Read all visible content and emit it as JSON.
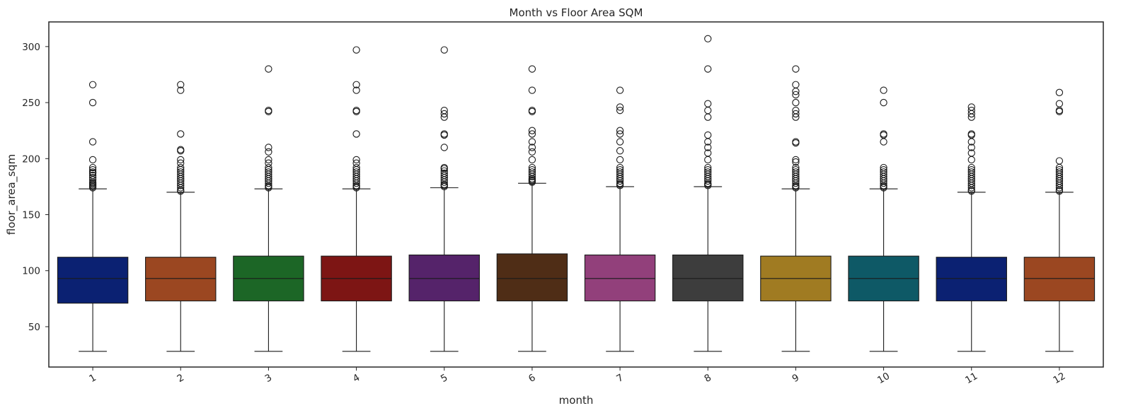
{
  "chart_data": {
    "type": "box",
    "title": "Month vs Floor Area SQM",
    "xlabel": "month",
    "ylabel": "floor_area_sqm",
    "categories": [
      "1",
      "2",
      "3",
      "4",
      "5",
      "6",
      "7",
      "8",
      "9",
      "10",
      "11",
      "12"
    ],
    "ylim": [
      14,
      322
    ],
    "yticks": [
      50,
      100,
      150,
      200,
      250,
      300
    ],
    "grid": false,
    "xtick_rotation": -30,
    "boxes": [
      {
        "category": "1",
        "color": "#0b2172",
        "min": 28,
        "q1": 71,
        "median": 93,
        "q3": 112,
        "max": 173,
        "outliers": [
          266,
          250,
          215,
          199,
          192,
          190,
          188,
          187,
          185,
          183,
          181,
          179,
          178,
          177,
          176,
          175,
          174
        ]
      },
      {
        "category": "2",
        "color": "#9b4721",
        "min": 28,
        "q1": 73,
        "median": 93,
        "q3": 112,
        "max": 170,
        "outliers": [
          266,
          261,
          222,
          208,
          207,
          199,
          196,
          192,
          190,
          188,
          186,
          184,
          182,
          180,
          178,
          176,
          174,
          172,
          171
        ]
      },
      {
        "category": "3",
        "color": "#1c6626",
        "min": 28,
        "q1": 73,
        "median": 93,
        "q3": 113,
        "max": 173,
        "outliers": [
          280,
          243,
          242,
          210,
          206,
          199,
          196,
          192,
          190,
          188,
          186,
          184,
          182,
          180,
          178,
          176,
          175,
          174
        ]
      },
      {
        "category": "4",
        "color": "#7d1514",
        "min": 28,
        "q1": 73,
        "median": 93,
        "q3": 113,
        "max": 173,
        "outliers": [
          297,
          266,
          261,
          243,
          242,
          222,
          199,
          196,
          192,
          190,
          188,
          186,
          184,
          182,
          180,
          178,
          176,
          175,
          174
        ]
      },
      {
        "category": "5",
        "color": "#55236a",
        "min": 28,
        "q1": 73,
        "median": 93,
        "q3": 114,
        "max": 174,
        "outliers": [
          297,
          243,
          240,
          237,
          222,
          221,
          210,
          192,
          191,
          189,
          187,
          185,
          183,
          181,
          179,
          177,
          176,
          175
        ]
      },
      {
        "category": "6",
        "color": "#4f2d16",
        "min": 28,
        "q1": 73,
        "median": 93,
        "q3": 115,
        "max": 178,
        "outliers": [
          280,
          261,
          243,
          242,
          225,
          222,
          215,
          210,
          206,
          199,
          192,
          190,
          188,
          186,
          184,
          182,
          181,
          180,
          179
        ]
      },
      {
        "category": "7",
        "color": "#92407b",
        "min": 28,
        "q1": 73,
        "median": 93,
        "q3": 114,
        "max": 175,
        "outliers": [
          261,
          246,
          243,
          225,
          222,
          215,
          207,
          199,
          192,
          190,
          188,
          186,
          184,
          182,
          180,
          178,
          177,
          176
        ]
      },
      {
        "category": "8",
        "color": "#3d3d3d",
        "min": 28,
        "q1": 73,
        "median": 93,
        "q3": 114,
        "max": 175,
        "outliers": [
          307,
          280,
          249,
          243,
          237,
          221,
          215,
          210,
          205,
          199,
          192,
          190,
          188,
          186,
          184,
          182,
          180,
          178,
          177,
          176
        ]
      },
      {
        "category": "9",
        "color": "#a07b22",
        "min": 28,
        "q1": 73,
        "median": 93,
        "q3": 113,
        "max": 173,
        "outliers": [
          280,
          266,
          260,
          257,
          250,
          243,
          240,
          237,
          215,
          214,
          199,
          197,
          192,
          190,
          188,
          186,
          184,
          182,
          180,
          178,
          176,
          175,
          174
        ]
      },
      {
        "category": "10",
        "color": "#0e5966",
        "min": 28,
        "q1": 73,
        "median": 93,
        "q3": 113,
        "max": 173,
        "outliers": [
          261,
          250,
          222,
          221,
          215,
          192,
          190,
          188,
          186,
          184,
          182,
          180,
          178,
          176,
          175,
          174
        ]
      },
      {
        "category": "11",
        "color": "#0b2172",
        "min": 28,
        "q1": 73,
        "median": 93,
        "q3": 112,
        "max": 170,
        "outliers": [
          246,
          243,
          240,
          237,
          222,
          221,
          215,
          210,
          205,
          199,
          192,
          190,
          188,
          186,
          184,
          182,
          180,
          178,
          176,
          174,
          172,
          171
        ]
      },
      {
        "category": "12",
        "color": "#9b4721",
        "min": 28,
        "q1": 73,
        "median": 93,
        "q3": 112,
        "max": 170,
        "outliers": [
          259,
          249,
          243,
          242,
          198,
          192,
          190,
          188,
          186,
          184,
          182,
          180,
          178,
          176,
          174,
          172,
          171
        ]
      }
    ]
  }
}
